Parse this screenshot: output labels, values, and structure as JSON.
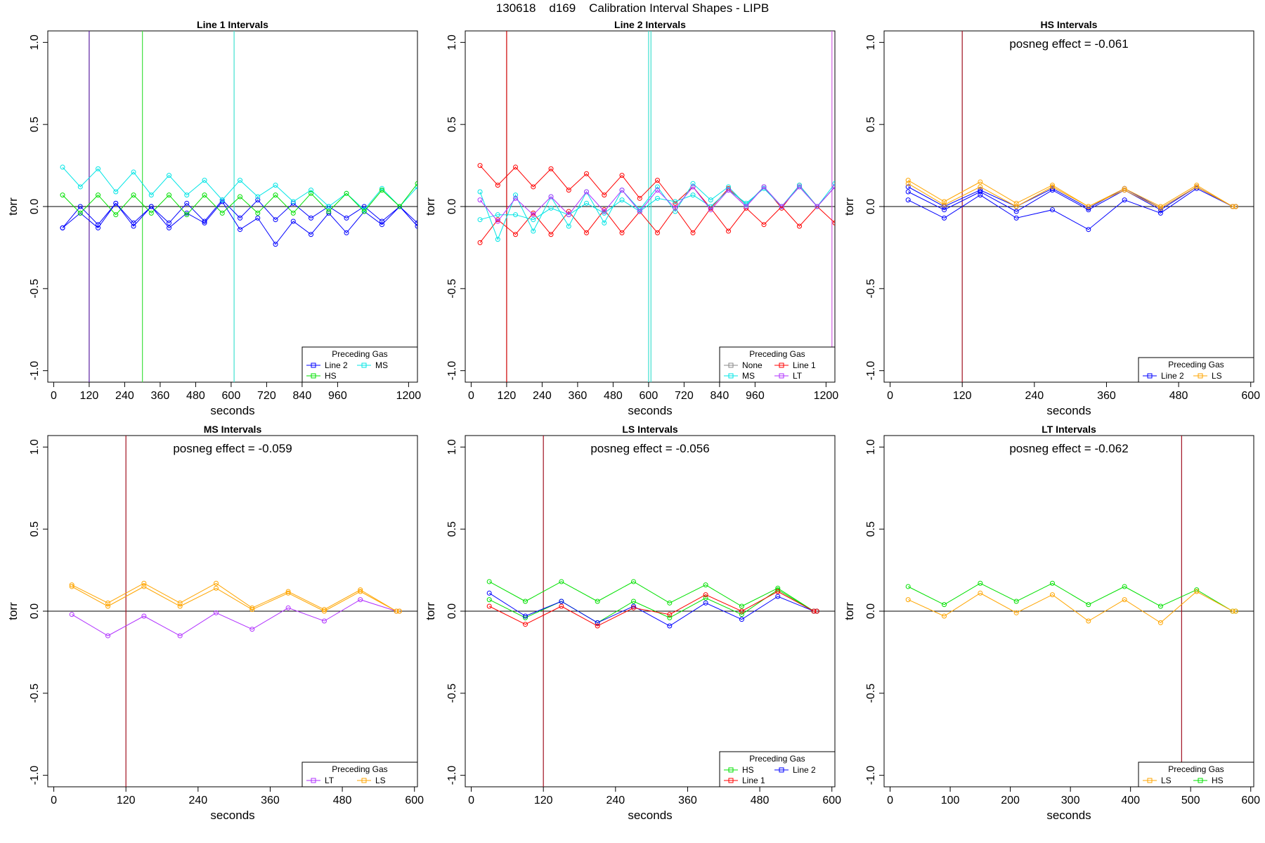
{
  "title": "130618    d169    Calibration Interval Shapes - LIPB",
  "colors": {
    "Line 1": "#ff0000",
    "Line 2": "#0000ff",
    "HS": "#00e000",
    "MS": "#00e5e5",
    "LS": "#ffa500",
    "LT": "#b030ff",
    "None": "#888888",
    "boundary": "#a01020"
  },
  "chart_data": [
    {
      "type": "line",
      "title": "Line 1 Intervals",
      "xlabel": "seconds",
      "ylabel": "torr",
      "xlim": [
        -20,
        1230
      ],
      "ylim": [
        -1.07,
        1.07
      ],
      "xticks": [
        0,
        120,
        240,
        360,
        480,
        600,
        720,
        840,
        960,
        1200
      ],
      "yticks": [
        -1.0,
        -0.5,
        0.0,
        0.5,
        1.0
      ],
      "hline": 0,
      "vlines": [
        {
          "x": 120,
          "color": "#5a1fa0"
        },
        {
          "x": 300,
          "color": "#40e040"
        },
        {
          "x": 610,
          "color": "#40e0d0"
        }
      ],
      "legend": {
        "title": "Preceding Gas",
        "position": "bottom-right",
        "rows": [
          [
            "Line 2",
            "MS"
          ],
          [
            "HS"
          ]
        ]
      },
      "series": [
        {
          "name": "Line 2",
          "x": [
            30,
            90,
            150,
            210,
            270,
            330,
            390,
            450,
            510,
            570,
            630,
            690,
            750,
            810,
            870,
            930,
            990,
            1050,
            1110,
            1170,
            1230
          ],
          "y": [
            -0.13,
            -0.04,
            -0.13,
            0.02,
            -0.12,
            0.0,
            -0.13,
            -0.04,
            -0.1,
            0.03,
            -0.14,
            -0.07,
            -0.23,
            -0.09,
            -0.17,
            -0.04,
            -0.16,
            -0.03,
            -0.11,
            0.0,
            -0.12
          ]
        },
        {
          "name": "Line 2",
          "x": [
            30,
            90,
            150,
            210,
            270,
            330,
            390,
            450,
            510,
            570,
            630,
            690,
            750,
            810,
            870,
            930,
            990,
            1050,
            1110,
            1170,
            1230
          ],
          "y": [
            -0.13,
            0.0,
            -0.11,
            0.02,
            -0.1,
            0.0,
            -0.1,
            0.02,
            -0.09,
            0.04,
            -0.07,
            0.04,
            -0.08,
            0.02,
            -0.07,
            0.0,
            -0.07,
            0.0,
            -0.09,
            0.0,
            -0.1
          ]
        },
        {
          "name": "MS",
          "x": [
            30,
            90,
            150,
            210,
            270,
            330,
            390,
            450,
            510,
            570,
            630,
            690,
            750,
            810,
            870,
            930,
            990,
            1050,
            1110,
            1170,
            1230
          ],
          "y": [
            0.24,
            0.12,
            0.23,
            0.09,
            0.21,
            0.07,
            0.19,
            0.07,
            0.16,
            0.04,
            0.16,
            0.06,
            0.13,
            0.03,
            0.1,
            0.0,
            0.08,
            -0.02,
            0.11,
            0.0,
            0.12
          ]
        },
        {
          "name": "HS",
          "x": [
            30,
            90,
            150,
            210,
            270,
            330,
            390,
            450,
            510,
            570,
            630,
            690,
            750,
            810,
            870,
            930,
            990,
            1050,
            1110,
            1170,
            1230
          ],
          "y": [
            0.07,
            -0.04,
            0.07,
            -0.05,
            0.07,
            -0.04,
            0.07,
            -0.05,
            0.07,
            -0.04,
            0.06,
            -0.04,
            0.07,
            -0.04,
            0.08,
            -0.03,
            0.08,
            -0.03,
            0.1,
            0.0,
            0.14
          ]
        }
      ]
    },
    {
      "type": "line",
      "title": "Line 2 Intervals",
      "xlabel": "seconds",
      "ylabel": "torr",
      "xlim": [
        -20,
        1230
      ],
      "ylim": [
        -1.07,
        1.07
      ],
      "xticks": [
        0,
        120,
        240,
        360,
        480,
        600,
        720,
        840,
        960,
        1200
      ],
      "yticks": [
        -1.0,
        -0.5,
        0.0,
        0.5,
        1.0
      ],
      "hline": 0,
      "vlines": [
        {
          "x": 120,
          "color": "#cc0000"
        },
        {
          "x": 600,
          "color": "#40e0d0"
        },
        {
          "x": 608,
          "color": "#40e0d0"
        },
        {
          "x": 1220,
          "color": "#d060e0"
        }
      ],
      "legend": {
        "title": "Preceding Gas",
        "position": "bottom-right",
        "rows": [
          [
            "None",
            "Line 1"
          ],
          [
            "MS",
            "LT"
          ]
        ]
      },
      "series": [
        {
          "name": "Line 1",
          "x": [
            30,
            90,
            150,
            210,
            270,
            330,
            390,
            450,
            510,
            570,
            630,
            690,
            750,
            810,
            870,
            930,
            990,
            1050,
            1110,
            1170,
            1230
          ],
          "y": [
            0.25,
            0.13,
            0.24,
            0.12,
            0.23,
            0.1,
            0.2,
            0.07,
            0.19,
            0.05,
            0.16,
            0.02,
            0.12,
            -0.01,
            0.11,
            0.01,
            0.12,
            -0.01,
            0.13,
            0.0,
            0.12
          ]
        },
        {
          "name": "Line 1",
          "x": [
            30,
            90,
            150,
            210,
            270,
            330,
            390,
            450,
            510,
            570,
            630,
            690,
            750,
            810,
            870,
            930,
            990,
            1050,
            1110,
            1170,
            1230
          ],
          "y": [
            -0.22,
            -0.08,
            -0.17,
            -0.04,
            -0.17,
            -0.03,
            -0.16,
            -0.02,
            -0.16,
            -0.03,
            -0.16,
            -0.01,
            -0.16,
            -0.01,
            -0.15,
            -0.01,
            -0.11,
            0.0,
            -0.12,
            0.0,
            -0.1
          ]
        },
        {
          "name": "MS",
          "x": [
            30,
            90,
            150,
            210,
            270,
            330,
            390,
            450,
            510,
            570,
            630,
            690,
            750,
            810,
            870,
            930,
            990,
            1050,
            1110,
            1170,
            1230
          ],
          "y": [
            0.09,
            -0.2,
            0.07,
            -0.15,
            0.06,
            -0.12,
            0.09,
            -0.1,
            0.1,
            -0.02,
            0.12,
            -0.03,
            0.14,
            0.04,
            0.12,
            0.01,
            0.12,
            0.0,
            0.13,
            0.0,
            0.14
          ]
        },
        {
          "name": "MS",
          "x": [
            30,
            90,
            150,
            210,
            270,
            330,
            390,
            450,
            510,
            570,
            630,
            690,
            750,
            810,
            870,
            930,
            990,
            1050,
            1110,
            1170,
            1230
          ],
          "y": [
            -0.08,
            -0.05,
            -0.05,
            -0.08,
            -0.01,
            -0.05,
            0.02,
            -0.04,
            0.04,
            -0.03,
            0.05,
            0.03,
            0.07,
            0.0,
            0.1,
            0.02,
            0.11,
            0.0,
            0.12,
            0.0,
            0.12
          ]
        },
        {
          "name": "LT",
          "x": [
            30,
            90,
            150,
            210,
            270,
            330,
            390,
            450,
            510,
            570,
            630,
            690,
            750,
            810,
            870,
            930,
            990,
            1050,
            1110,
            1170,
            1230
          ],
          "y": [
            0.04,
            -0.09,
            0.05,
            -0.05,
            0.06,
            -0.05,
            0.09,
            -0.03,
            0.1,
            -0.03,
            0.1,
            -0.01,
            0.12,
            -0.02,
            0.1,
            0.0,
            0.12,
            0.0,
            0.12,
            0.0,
            0.12
          ]
        }
      ]
    },
    {
      "type": "line",
      "title": "HS Intervals",
      "xlabel": "seconds",
      "ylabel": "torr",
      "xlim": [
        -10,
        605
      ],
      "ylim": [
        -1.07,
        1.07
      ],
      "xticks": [
        0,
        120,
        240,
        360,
        480,
        600
      ],
      "yticks": [
        -1.0,
        -0.5,
        0.0,
        0.5,
        1.0
      ],
      "hline": 0,
      "vlines": [
        {
          "x": 120,
          "color": "#a01020"
        }
      ],
      "annotation": "posneg effect = -0.061",
      "legend": {
        "title": "Preceding Gas",
        "position": "bottom-right",
        "rows": [
          [
            "Line 2",
            "LS"
          ]
        ]
      },
      "series": [
        {
          "name": "Line 2",
          "x": [
            30,
            90,
            150,
            210,
            270,
            330,
            390,
            450,
            510,
            570,
            575
          ],
          "y": [
            0.04,
            -0.07,
            0.07,
            -0.07,
            -0.02,
            -0.14,
            0.04,
            -0.04,
            0.11,
            0.0,
            0.0
          ]
        },
        {
          "name": "Line 2",
          "x": [
            30,
            90,
            150,
            210,
            270,
            330,
            390,
            450,
            510,
            570,
            575
          ],
          "y": [
            0.09,
            -0.02,
            0.09,
            -0.03,
            0.1,
            -0.02,
            0.1,
            -0.02,
            0.12,
            0.0,
            0.0
          ]
        },
        {
          "name": "Line 2",
          "x": [
            30,
            90,
            150,
            210,
            270,
            330,
            390,
            450,
            510,
            570,
            575
          ],
          "y": [
            0.12,
            0.0,
            0.1,
            0.0,
            0.11,
            -0.01,
            0.11,
            -0.01,
            0.12,
            0.0,
            0.0
          ]
        },
        {
          "name": "LS",
          "x": [
            30,
            90,
            150,
            210,
            270,
            330,
            390,
            450,
            510,
            570,
            575
          ],
          "y": [
            0.16,
            0.03,
            0.15,
            0.02,
            0.13,
            0.0,
            0.11,
            0.0,
            0.13,
            0.0,
            0.0
          ]
        },
        {
          "name": "LS",
          "x": [
            30,
            90,
            150,
            210,
            270,
            330,
            390,
            450,
            510,
            570,
            575
          ],
          "y": [
            0.14,
            0.01,
            0.12,
            0.0,
            0.12,
            0.0,
            0.1,
            -0.01,
            0.12,
            0.0,
            0.0
          ]
        }
      ]
    },
    {
      "type": "line",
      "title": "MS Intervals",
      "xlabel": "seconds",
      "ylabel": "torr",
      "xlim": [
        -10,
        605
      ],
      "ylim": [
        -1.07,
        1.07
      ],
      "xticks": [
        0,
        120,
        240,
        360,
        480,
        600
      ],
      "yticks": [
        -1.0,
        -0.5,
        0.0,
        0.5,
        1.0
      ],
      "hline": 0,
      "vlines": [
        {
          "x": 120,
          "color": "#a01020"
        }
      ],
      "annotation": "posneg effect = -0.059",
      "legend": {
        "title": "Preceding Gas",
        "position": "bottom-right",
        "rows": [
          [
            "LT",
            "LS"
          ]
        ]
      },
      "series": [
        {
          "name": "LT",
          "x": [
            30,
            90,
            150,
            210,
            270,
            330,
            390,
            450,
            510,
            570,
            575
          ],
          "y": [
            -0.02,
            -0.15,
            -0.03,
            -0.15,
            -0.01,
            -0.11,
            0.02,
            -0.06,
            0.07,
            0.0,
            0.0
          ]
        },
        {
          "name": "LS",
          "x": [
            30,
            90,
            150,
            210,
            270,
            330,
            390,
            450,
            510,
            570,
            575
          ],
          "y": [
            0.16,
            0.05,
            0.17,
            0.05,
            0.17,
            0.02,
            0.12,
            0.01,
            0.13,
            0.0,
            0.0
          ]
        },
        {
          "name": "LS",
          "x": [
            30,
            90,
            150,
            210,
            270,
            330,
            390,
            450,
            510,
            570,
            575
          ],
          "y": [
            0.15,
            0.03,
            0.15,
            0.03,
            0.14,
            0.01,
            0.11,
            0.0,
            0.12,
            0.0,
            0.0
          ]
        }
      ]
    },
    {
      "type": "line",
      "title": "LS Intervals",
      "xlabel": "seconds",
      "ylabel": "torr",
      "xlim": [
        -10,
        605
      ],
      "ylim": [
        -1.07,
        1.07
      ],
      "xticks": [
        0,
        120,
        240,
        360,
        480,
        600
      ],
      "yticks": [
        -1.0,
        -0.5,
        0.0,
        0.5,
        1.0
      ],
      "hline": 0,
      "vlines": [
        {
          "x": 120,
          "color": "#a01020"
        }
      ],
      "annotation": "posneg effect = -0.056",
      "legend": {
        "title": "Preceding Gas",
        "position": "bottom-right",
        "rows": [
          [
            "HS",
            "Line 2"
          ],
          [
            "Line 1"
          ]
        ]
      },
      "series": [
        {
          "name": "HS",
          "x": [
            30,
            90,
            150,
            210,
            270,
            330,
            390,
            450,
            510,
            570,
            575
          ],
          "y": [
            0.18,
            0.06,
            0.18,
            0.06,
            0.18,
            0.05,
            0.16,
            0.03,
            0.14,
            0.0,
            0.0
          ]
        },
        {
          "name": "HS",
          "x": [
            30,
            90,
            150,
            210,
            270,
            330,
            390,
            450,
            510,
            570,
            575
          ],
          "y": [
            0.07,
            -0.04,
            0.06,
            -0.07,
            0.06,
            -0.04,
            0.08,
            -0.02,
            0.13,
            0.0,
            0.0
          ]
        },
        {
          "name": "Line 2",
          "x": [
            30,
            90,
            150,
            210,
            270,
            330,
            390,
            450,
            510,
            570,
            575
          ],
          "y": [
            0.11,
            -0.03,
            0.06,
            -0.07,
            0.03,
            -0.09,
            0.05,
            -0.05,
            0.09,
            0.0,
            0.0
          ]
        },
        {
          "name": "Line 1",
          "x": [
            30,
            90,
            150,
            210,
            270,
            330,
            390,
            450,
            510,
            570,
            575
          ],
          "y": [
            0.03,
            -0.08,
            0.03,
            -0.09,
            0.02,
            -0.02,
            0.1,
            0.0,
            0.12,
            0.0,
            0.0
          ]
        }
      ]
    },
    {
      "type": "line",
      "title": "LT Intervals",
      "xlabel": "seconds",
      "ylabel": "torr",
      "xlim": [
        -10,
        605
      ],
      "ylim": [
        -1.07,
        1.07
      ],
      "xticks": [
        0,
        100,
        200,
        300,
        400,
        500,
        600
      ],
      "yticks": [
        -1.0,
        -0.5,
        0.0,
        0.5,
        1.0
      ],
      "hline": 0,
      "vlines": [
        {
          "x": 485,
          "color": "#a01020"
        }
      ],
      "annotation": "posneg effect = -0.062",
      "legend": {
        "title": "Preceding Gas",
        "position": "bottom-right",
        "rows": [
          [
            "LS",
            "HS"
          ]
        ]
      },
      "series": [
        {
          "name": "HS",
          "x": [
            30,
            90,
            150,
            210,
            270,
            330,
            390,
            450,
            510,
            570,
            575
          ],
          "y": [
            0.15,
            0.04,
            0.17,
            0.06,
            0.17,
            0.04,
            0.15,
            0.03,
            0.13,
            0.0,
            0.0
          ]
        },
        {
          "name": "LS",
          "x": [
            30,
            90,
            150,
            210,
            270,
            330,
            390,
            450,
            510,
            570,
            575
          ],
          "y": [
            0.07,
            -0.03,
            0.11,
            -0.01,
            0.1,
            -0.06,
            0.07,
            -0.07,
            0.12,
            0.0,
            0.0
          ]
        }
      ]
    }
  ]
}
